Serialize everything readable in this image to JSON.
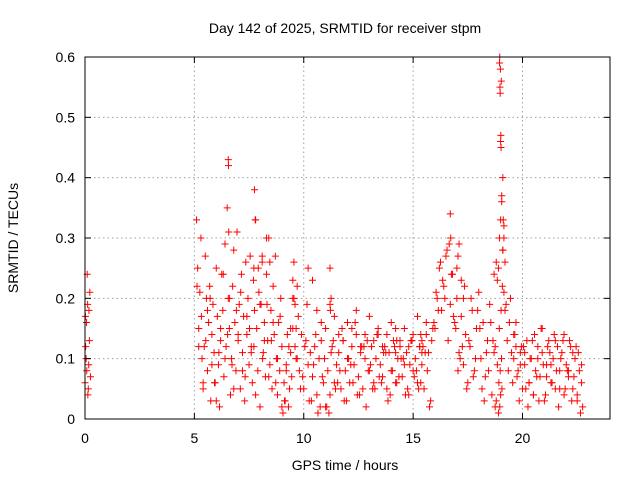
{
  "chart_data": {
    "type": "scatter",
    "title": "Day 142 of 2025, SRMTID for receiver stpm",
    "xlabel": "GPS time / hours",
    "ylabel": "SRMTID / TECUs",
    "xlim": [
      0,
      24
    ],
    "ylim": [
      0,
      0.6
    ],
    "xticks": [
      0,
      5,
      10,
      15,
      20
    ],
    "xtick_labels": [
      "0",
      "5",
      "10",
      "15",
      "20"
    ],
    "yticks": [
      0,
      0.1,
      0.2,
      0.3,
      0.4,
      0.5,
      0.6
    ],
    "ytick_labels": [
      "0",
      "0.1",
      "0.2",
      "0.3",
      "0.4",
      "0.5",
      "0.6"
    ],
    "grid": true,
    "marker": "+",
    "marker_color": "#ff0000",
    "series": [
      {
        "name": "SRMTID",
        "x": [
          0.0,
          0.02,
          0.05,
          0.07,
          0.1,
          0.12,
          0.15,
          0.17,
          0.2,
          0.22,
          0.25,
          0.03,
          0.08,
          0.13,
          0.18,
          5.1,
          5.15,
          5.2,
          5.25,
          5.3,
          5.35,
          5.4,
          5.45,
          5.5,
          5.55,
          5.6,
          5.65,
          5.7,
          5.75,
          5.8,
          5.85,
          5.9,
          5.95,
          6.0,
          6.05,
          6.1,
          6.15,
          6.2,
          6.25,
          6.3,
          6.35,
          6.4,
          6.45,
          6.5,
          6.55,
          6.6,
          6.65,
          6.7,
          6.75,
          6.8,
          6.85,
          6.9,
          6.95,
          7.0,
          7.05,
          7.1,
          7.15,
          7.2,
          7.25,
          7.3,
          7.35,
          7.4,
          7.45,
          7.5,
          7.55,
          7.6,
          7.65,
          7.7,
          7.75,
          7.8,
          7.85,
          7.9,
          7.95,
          8.0,
          8.05,
          8.1,
          8.15,
          8.2,
          8.25,
          8.3,
          8.35,
          8.4,
          8.45,
          8.5,
          8.55,
          8.6,
          8.65,
          8.7,
          8.75,
          8.8,
          8.85,
          8.9,
          8.95,
          9.0,
          9.05,
          9.1,
          9.15,
          9.2,
          9.25,
          9.3,
          9.35,
          9.4,
          9.45,
          9.5,
          5.2,
          5.4,
          5.6,
          5.8,
          6.0,
          6.2,
          6.4,
          6.6,
          6.8,
          7.0,
          7.2,
          7.4,
          7.6,
          7.8,
          8.0,
          8.2,
          8.4,
          8.6,
          8.8,
          9.0,
          9.2,
          9.4,
          5.12,
          5.32,
          5.52,
          5.72,
          5.92,
          6.12,
          6.32,
          6.52,
          6.72,
          6.92,
          7.12,
          7.32,
          7.52,
          7.72,
          7.92,
          8.12,
          8.32,
          8.52,
          8.72,
          8.92,
          9.12,
          9.32,
          6.55,
          6.56,
          6.57,
          7.75,
          7.78,
          7.72,
          8.1,
          8.3,
          8.45,
          9.5,
          9.55,
          9.6,
          9.65,
          9.7,
          9.5,
          9.6,
          9.7,
          9.8,
          9.9,
          10.0,
          10.1,
          10.2,
          10.3,
          10.4,
          10.5,
          10.6,
          10.7,
          10.8,
          10.9,
          11.0,
          11.1,
          11.2,
          11.3,
          11.4,
          11.5,
          11.6,
          11.7,
          11.8,
          11.9,
          12.0,
          12.1,
          12.2,
          12.3,
          12.4,
          12.5,
          12.6,
          12.7,
          12.8,
          12.9,
          13.0,
          13.1,
          13.2,
          13.3,
          13.4,
          13.5,
          13.6,
          13.7,
          13.8,
          13.9,
          14.0,
          14.1,
          14.2,
          14.3,
          14.4,
          14.5,
          14.6,
          14.7,
          14.8,
          14.9,
          15.0,
          15.1,
          15.2,
          15.3,
          15.4,
          15.5,
          15.6,
          15.7,
          15.8,
          15.9,
          9.55,
          9.75,
          9.95,
          10.15,
          10.35,
          10.55,
          10.75,
          10.95,
          11.15,
          11.35,
          11.55,
          11.75,
          11.95,
          12.15,
          12.35,
          12.55,
          12.75,
          12.95,
          13.15,
          13.35,
          13.55,
          13.75,
          13.95,
          14.15,
          14.35,
          14.55,
          14.75,
          14.95,
          15.15,
          15.35,
          15.55,
          15.75,
          15.95,
          9.65,
          9.85,
          10.05,
          10.25,
          10.45,
          10.65,
          10.85,
          11.05,
          11.25,
          11.45,
          11.65,
          11.85,
          12.05,
          12.25,
          12.45,
          12.65,
          12.85,
          13.05,
          13.25,
          13.45,
          13.65,
          13.85,
          14.05,
          14.25,
          14.45,
          14.65,
          14.85,
          15.05,
          15.25,
          15.45,
          15.65,
          15.85,
          10.2,
          10.4,
          10.6,
          10.8,
          11.0,
          11.2,
          11.4,
          11.6,
          11.8,
          12.0,
          12.2,
          12.4,
          12.6,
          12.8,
          13.0,
          13.2,
          13.4,
          13.6,
          13.8,
          14.0,
          14.2,
          14.4,
          14.6,
          14.8,
          15.0,
          15.2,
          15.4,
          15.6,
          11.2,
          11.25,
          11.22,
          14.2,
          14.25,
          15.3,
          15.35,
          15.4,
          16.0,
          16.1,
          16.2,
          16.3,
          16.4,
          16.5,
          16.6,
          16.7,
          16.8,
          16.9,
          17.0,
          17.1,
          17.2,
          17.3,
          17.4,
          17.5,
          17.6,
          17.7,
          17.8,
          17.9,
          18.0,
          18.1,
          18.2,
          18.3,
          18.4,
          18.5,
          18.6,
          18.7,
          16.05,
          16.25,
          16.45,
          16.65,
          16.85,
          17.05,
          17.25,
          17.45,
          17.65,
          17.85,
          18.05,
          18.25,
          18.45,
          18.65,
          16.15,
          16.35,
          16.55,
          16.75,
          16.95,
          17.15,
          17.35,
          17.55,
          17.75,
          17.95,
          18.15,
          18.35,
          18.55,
          18.75,
          16.7,
          16.72,
          17.0,
          17.05,
          17.1,
          17.2,
          17.3,
          18.7,
          18.75,
          18.8,
          18.85,
          18.9,
          18.92,
          18.94,
          18.96,
          18.98,
          19.0,
          19.02,
          19.04,
          19.06,
          19.08,
          19.1,
          19.12,
          19.15,
          19.2,
          19.25,
          19.3,
          19.35,
          19.4,
          19.45,
          19.5,
          19.55,
          19.6,
          18.95,
          18.96,
          18.97,
          18.98,
          19.0,
          19.02,
          19.01,
          19.03,
          18.99,
          19.05,
          19.1,
          19.15,
          18.8,
          18.85,
          18.9,
          18.95,
          19.0,
          19.05,
          19.1,
          19.15,
          19.2,
          19.6,
          19.7,
          19.8,
          19.9,
          20.0,
          20.1,
          20.2,
          20.3,
          20.4,
          20.5,
          20.6,
          20.7,
          20.8,
          20.9,
          21.0,
          21.1,
          21.2,
          21.3,
          21.4,
          21.5,
          21.6,
          21.7,
          21.8,
          21.9,
          22.0,
          22.1,
          22.2,
          22.3,
          22.4,
          22.5,
          22.6,
          22.7,
          19.65,
          19.85,
          20.05,
          20.25,
          20.45,
          20.65,
          20.85,
          21.05,
          21.25,
          21.45,
          21.65,
          21.85,
          22.05,
          22.25,
          22.45,
          22.65,
          19.75,
          19.95,
          20.15,
          20.35,
          20.55,
          20.75,
          20.95,
          21.15,
          21.35,
          21.55,
          21.75,
          21.95,
          22.15,
          22.35,
          22.55,
          22.75,
          19.7,
          19.9,
          20.1,
          20.3,
          20.5,
          20.7,
          20.9,
          21.1,
          21.3,
          21.5,
          21.7,
          21.9,
          22.1,
          22.3,
          22.5,
          22.7
        ],
        "y": [
          0.06,
          0.17,
          0.1,
          0.16,
          0.24,
          0.19,
          0.05,
          0.09,
          0.13,
          0.21,
          0.07,
          0.12,
          0.08,
          0.04,
          0.18,
          0.33,
          0.25,
          0.15,
          0.21,
          0.3,
          0.1,
          0.05,
          0.12,
          0.27,
          0.2,
          0.08,
          0.16,
          0.22,
          0.03,
          0.14,
          0.19,
          0.11,
          0.06,
          0.25,
          0.17,
          0.09,
          0.02,
          0.13,
          0.24,
          0.18,
          0.07,
          0.29,
          0.12,
          0.35,
          0.2,
          0.15,
          0.04,
          0.1,
          0.22,
          0.28,
          0.16,
          0.08,
          0.31,
          0.13,
          0.19,
          0.05,
          0.24,
          0.11,
          0.17,
          0.03,
          0.26,
          0.14,
          0.2,
          0.09,
          0.27,
          0.12,
          0.06,
          0.23,
          0.18,
          0.33,
          0.15,
          0.08,
          0.21,
          0.02,
          0.19,
          0.26,
          0.11,
          0.16,
          0.07,
          0.24,
          0.13,
          0.3,
          0.09,
          0.18,
          0.05,
          0.22,
          0.14,
          0.27,
          0.1,
          0.04,
          0.16,
          0.08,
          0.2,
          0.12,
          0.01,
          0.06,
          0.03,
          0.09,
          0.14,
          0.02,
          0.05,
          0.11,
          0.07,
          0.2,
          0.12,
          0.06,
          0.18,
          0.09,
          0.03,
          0.15,
          0.1,
          0.2,
          0.05,
          0.14,
          0.08,
          0.17,
          0.11,
          0.04,
          0.19,
          0.13,
          0.07,
          0.16,
          0.1,
          0.02,
          0.08,
          0.15,
          0.22,
          0.17,
          0.13,
          0.2,
          0.06,
          0.11,
          0.24,
          0.14,
          0.09,
          0.18,
          0.21,
          0.07,
          0.15,
          0.12,
          0.25,
          0.1,
          0.19,
          0.13,
          0.06,
          0.17,
          0.03,
          0.12,
          0.43,
          0.42,
          0.31,
          0.38,
          0.33,
          0.25,
          0.27,
          0.3,
          0.26,
          0.23,
          0.26,
          0.19,
          0.15,
          0.22,
          0.15,
          0.12,
          0.1,
          0.08,
          0.14,
          0.05,
          0.13,
          0.09,
          0.11,
          0.07,
          0.12,
          0.04,
          0.1,
          0.13,
          0.06,
          0.02,
          0.08,
          0.04,
          0.12,
          0.06,
          0.09,
          0.11,
          0.05,
          0.13,
          0.08,
          0.1,
          0.06,
          0.12,
          0.09,
          0.14,
          0.07,
          0.11,
          0.05,
          0.1,
          0.13,
          0.08,
          0.12,
          0.06,
          0.1,
          0.14,
          0.09,
          0.07,
          0.12,
          0.05,
          0.11,
          0.08,
          0.13,
          0.06,
          0.1,
          0.12,
          0.07,
          0.09,
          0.11,
          0.04,
          0.13,
          0.08,
          0.1,
          0.06,
          0.12,
          0.09,
          0.05,
          0.14,
          0.11,
          0.03,
          0.15,
          0.2,
          0.17,
          0.07,
          0.19,
          0.03,
          0.14,
          0.02,
          0.1,
          0.01,
          0.13,
          0.06,
          0.15,
          0.03,
          0.09,
          0.16,
          0.04,
          0.12,
          0.08,
          0.05,
          0.14,
          0.06,
          0.11,
          0.04,
          0.12,
          0.07,
          0.1,
          0.05,
          0.13,
          0.08,
          0.06,
          0.11,
          0.02,
          0.16,
          0.1,
          0.05,
          0.12,
          0.03,
          0.09,
          0.01,
          0.07,
          0.02,
          0.11,
          0.05,
          0.08,
          0.03,
          0.1,
          0.06,
          0.04,
          0.12,
          0.02,
          0.09,
          0.05,
          0.07,
          0.11,
          0.03,
          0.08,
          0.06,
          0.1,
          0.04,
          0.09,
          0.07,
          0.05,
          0.12,
          0.08,
          0.13,
          0.25,
          0.23,
          0.18,
          0.16,
          0.15,
          0.19,
          0.17,
          0.14,
          0.13,
          0.16,
          0.15,
          0.18,
          0.12,
          0.14,
          0.17,
          0.13,
          0.15,
          0.12,
          0.14,
          0.16,
          0.11,
          0.13,
          0.15,
          0.12,
          0.14,
          0.17,
          0.13,
          0.16,
          0.25,
          0.2,
          0.18,
          0.15,
          0.13,
          0.12,
          0.14,
          0.11,
          0.15,
          0.2,
          0.25,
          0.18,
          0.22,
          0.27,
          0.13,
          0.19,
          0.24,
          0.16,
          0.2,
          0.11,
          0.17,
          0.09,
          0.14,
          0.06,
          0.12,
          0.18,
          0.08,
          0.15,
          0.21,
          0.1,
          0.16,
          0.07,
          0.13,
          0.19,
          0.04,
          0.11,
          0.21,
          0.26,
          0.2,
          0.29,
          0.17,
          0.08,
          0.12,
          0.05,
          0.2,
          0.1,
          0.15,
          0.03,
          0.08,
          0.13,
          0.18,
          0.23,
          0.28,
          0.24,
          0.15,
          0.1,
          0.22,
          0.13,
          0.07,
          0.18,
          0.05,
          0.11,
          0.16,
          0.02,
          0.34,
          0.3,
          0.25,
          0.27,
          0.29,
          0.23,
          0.2,
          0.24,
          0.12,
          0.03,
          0.09,
          0.01,
          0.06,
          0.15,
          0.02,
          0.08,
          0.04,
          0.18,
          0.1,
          0.05,
          0.22,
          0.28,
          0.33,
          0.3,
          0.26,
          0.19,
          0.13,
          0.08,
          0.16,
          0.2,
          0.11,
          0.06,
          0.14,
          0.59,
          0.6,
          0.55,
          0.54,
          0.46,
          0.45,
          0.47,
          0.56,
          0.58,
          0.37,
          0.4,
          0.32,
          0.26,
          0.23,
          0.25,
          0.3,
          0.33,
          0.36,
          0.28,
          0.21,
          0.18,
          0.1,
          0.12,
          0.08,
          0.11,
          0.05,
          0.09,
          0.13,
          0.06,
          0.1,
          0.04,
          0.08,
          0.12,
          0.07,
          0.11,
          0.03,
          0.09,
          0.13,
          0.06,
          0.1,
          0.05,
          0.12,
          0.08,
          0.11,
          0.04,
          0.09,
          0.07,
          0.12,
          0.05,
          0.1,
          0.03,
          0.08,
          0.06,
          0.14,
          0.03,
          0.12,
          0.02,
          0.13,
          0.07,
          0.15,
          0.04,
          0.11,
          0.14,
          0.02,
          0.13,
          0.08,
          0.03,
          0.12,
          0.01,
          0.07,
          0.12,
          0.05,
          0.1,
          0.14,
          0.03,
          0.09,
          0.12,
          0.06,
          0.08,
          0.1,
          0.05,
          0.13,
          0.07,
          0.11,
          0.02,
          0.16,
          0.09,
          0.11,
          0.06,
          0.04,
          0.1,
          0.15,
          0.07,
          0.09,
          0.13,
          0.05,
          0.14,
          0.08,
          0.11,
          0.04,
          0.09
        ]
      }
    ]
  }
}
